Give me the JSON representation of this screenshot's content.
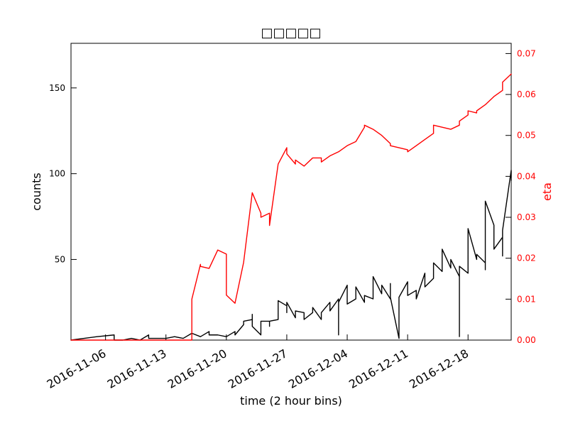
{
  "chart_data": {
    "type": "line",
    "title": "□□□□□",
    "xlabel": "time (2 hour bins)",
    "ylabel_left": "counts",
    "ylabel_right": "eta",
    "x_ticks": [
      "2016-11-06",
      "2016-11-13",
      "2016-11-20",
      "2016-11-27",
      "2016-12-04",
      "2016-12-11",
      "2016-12-18"
    ],
    "x_range": [
      "2016-11-02",
      "2016-12-23"
    ],
    "y_left_range": [
      3,
      176
    ],
    "y_left_ticks": [
      50,
      100,
      150
    ],
    "y_right_range": [
      0,
      0.0725
    ],
    "y_right_ticks": [
      0.0,
      0.01,
      0.02,
      0.03,
      0.04,
      0.05,
      0.06,
      0.07
    ],
    "grid": false,
    "series": [
      {
        "name": "counts",
        "axis": "left",
        "color": "#000000",
        "points": [
          [
            "2016-11-02",
            3
          ],
          [
            "2016-11-05",
            5
          ],
          [
            "2016-11-07",
            6
          ],
          [
            "2016-11-07",
            3
          ],
          [
            "2016-11-08",
            3
          ],
          [
            "2016-11-09",
            4
          ],
          [
            "2016-11-10",
            3
          ],
          [
            "2016-11-11",
            6
          ],
          [
            "2016-11-11",
            4
          ],
          [
            "2016-11-13",
            4
          ],
          [
            "2016-11-14",
            5
          ],
          [
            "2016-11-15",
            4
          ],
          [
            "2016-11-16",
            7
          ],
          [
            "2016-11-17",
            5
          ],
          [
            "2016-11-18",
            8
          ],
          [
            "2016-11-18",
            6
          ],
          [
            "2016-11-19",
            6
          ],
          [
            "2016-11-20",
            5
          ],
          [
            "2016-11-21",
            8
          ],
          [
            "2016-11-21",
            6
          ],
          [
            "2016-11-22",
            12
          ],
          [
            "2016-11-22",
            14
          ],
          [
            "2016-11-23",
            15
          ],
          [
            "2016-11-23",
            18
          ],
          [
            "2016-11-23",
            11
          ],
          [
            "2016-11-24",
            6
          ],
          [
            "2016-11-24",
            12
          ],
          [
            "2016-11-24",
            14
          ],
          [
            "2016-11-25",
            14
          ],
          [
            "2016-11-25",
            11
          ],
          [
            "2016-11-25",
            14
          ],
          [
            "2016-11-26",
            15
          ],
          [
            "2016-11-26",
            26
          ],
          [
            "2016-11-27",
            23
          ],
          [
            "2016-11-27",
            19
          ],
          [
            "2016-11-27",
            25
          ],
          [
            "2016-11-28",
            16
          ],
          [
            "2016-11-28",
            20
          ],
          [
            "2016-11-29",
            19
          ],
          [
            "2016-11-29",
            15
          ],
          [
            "2016-11-30",
            19
          ],
          [
            "2016-11-30",
            22
          ],
          [
            "2016-12-01",
            15
          ],
          [
            "2016-12-01",
            19
          ],
          [
            "2016-12-02",
            25
          ],
          [
            "2016-12-02",
            20
          ],
          [
            "2016-12-03",
            27
          ],
          [
            "2016-12-03",
            6
          ],
          [
            "2016-12-03",
            25
          ],
          [
            "2016-12-04",
            35
          ],
          [
            "2016-12-04",
            24
          ],
          [
            "2016-12-05",
            27
          ],
          [
            "2016-12-05",
            34
          ],
          [
            "2016-12-06",
            25
          ],
          [
            "2016-12-06",
            29
          ],
          [
            "2016-12-07",
            27
          ],
          [
            "2016-12-07",
            40
          ],
          [
            "2016-12-08",
            30
          ],
          [
            "2016-12-08",
            35
          ],
          [
            "2016-12-09",
            27
          ],
          [
            "2016-12-09",
            36
          ],
          [
            "2016-12-09",
            28
          ],
          [
            "2016-12-10",
            4
          ],
          [
            "2016-12-10",
            28
          ],
          [
            "2016-12-11",
            37
          ],
          [
            "2016-12-11",
            29
          ],
          [
            "2016-12-12",
            32
          ],
          [
            "2016-12-12",
            27
          ],
          [
            "2016-12-13",
            42
          ],
          [
            "2016-12-13",
            34
          ],
          [
            "2016-12-14",
            39
          ],
          [
            "2016-12-14",
            48
          ],
          [
            "2016-12-15",
            43
          ],
          [
            "2016-12-15",
            56
          ],
          [
            "2016-12-16",
            45
          ],
          [
            "2016-12-16",
            50
          ],
          [
            "2016-12-17",
            40
          ],
          [
            "2016-12-17",
            5
          ],
          [
            "2016-12-17",
            20
          ],
          [
            "2016-12-17",
            46
          ],
          [
            "2016-12-18",
            42
          ],
          [
            "2016-12-18",
            68
          ],
          [
            "2016-12-19",
            50
          ],
          [
            "2016-12-19",
            53
          ],
          [
            "2016-12-20",
            48
          ],
          [
            "2016-12-20",
            44
          ],
          [
            "2016-12-20",
            84
          ],
          [
            "2016-12-21",
            70
          ],
          [
            "2016-12-21",
            56
          ],
          [
            "2016-12-22",
            63
          ],
          [
            "2016-12-22",
            52
          ],
          [
            "2016-12-22",
            67
          ],
          [
            "2016-12-23",
            102
          ],
          [
            "2016-12-23",
            96
          ]
        ]
      },
      {
        "name": "eta",
        "axis": "right",
        "color": "#ff0000",
        "points": [
          [
            "2016-11-02",
            0.0
          ],
          [
            "2016-11-16",
            0.0
          ],
          [
            "2016-11-16",
            0.01
          ],
          [
            "2016-11-17",
            0.0185
          ],
          [
            "2016-11-17",
            0.018
          ],
          [
            "2016-11-18",
            0.0175
          ],
          [
            "2016-11-19",
            0.022
          ],
          [
            "2016-11-20",
            0.021
          ],
          [
            "2016-11-20",
            0.011
          ],
          [
            "2016-11-21",
            0.009
          ],
          [
            "2016-11-22",
            0.019
          ],
          [
            "2016-11-23",
            0.036
          ],
          [
            "2016-11-24",
            0.031
          ],
          [
            "2016-11-24",
            0.03
          ],
          [
            "2016-11-25",
            0.031
          ],
          [
            "2016-11-25",
            0.028
          ],
          [
            "2016-11-26",
            0.043
          ],
          [
            "2016-11-27",
            0.047
          ],
          [
            "2016-11-27",
            0.0455
          ],
          [
            "2016-11-28",
            0.043
          ],
          [
            "2016-11-28",
            0.044
          ],
          [
            "2016-11-29",
            0.0425
          ],
          [
            "2016-11-30",
            0.0445
          ],
          [
            "2016-12-01",
            0.0445
          ],
          [
            "2016-12-01",
            0.0435
          ],
          [
            "2016-12-02",
            0.045
          ],
          [
            "2016-12-03",
            0.046
          ],
          [
            "2016-12-04",
            0.0475
          ],
          [
            "2016-12-05",
            0.0485
          ],
          [
            "2016-12-06",
            0.052
          ],
          [
            "2016-12-06",
            0.0525
          ],
          [
            "2016-12-07",
            0.0515
          ],
          [
            "2016-12-08",
            0.05
          ],
          [
            "2016-12-09",
            0.048
          ],
          [
            "2016-12-09",
            0.0475
          ],
          [
            "2016-12-10",
            0.047
          ],
          [
            "2016-12-11",
            0.0465
          ],
          [
            "2016-12-11",
            0.046
          ],
          [
            "2016-12-12",
            0.0475
          ],
          [
            "2016-12-13",
            0.049
          ],
          [
            "2016-12-14",
            0.0505
          ],
          [
            "2016-12-14",
            0.0525
          ],
          [
            "2016-12-15",
            0.052
          ],
          [
            "2016-12-16",
            0.0515
          ],
          [
            "2016-12-17",
            0.0525
          ],
          [
            "2016-12-17",
            0.0535
          ],
          [
            "2016-12-18",
            0.055
          ],
          [
            "2016-12-18",
            0.056
          ],
          [
            "2016-12-19",
            0.0555
          ],
          [
            "2016-12-19",
            0.056
          ],
          [
            "2016-12-20",
            0.0575
          ],
          [
            "2016-12-21",
            0.0595
          ],
          [
            "2016-12-22",
            0.061
          ],
          [
            "2016-12-22",
            0.063
          ],
          [
            "2016-12-23",
            0.065
          ]
        ]
      }
    ]
  }
}
